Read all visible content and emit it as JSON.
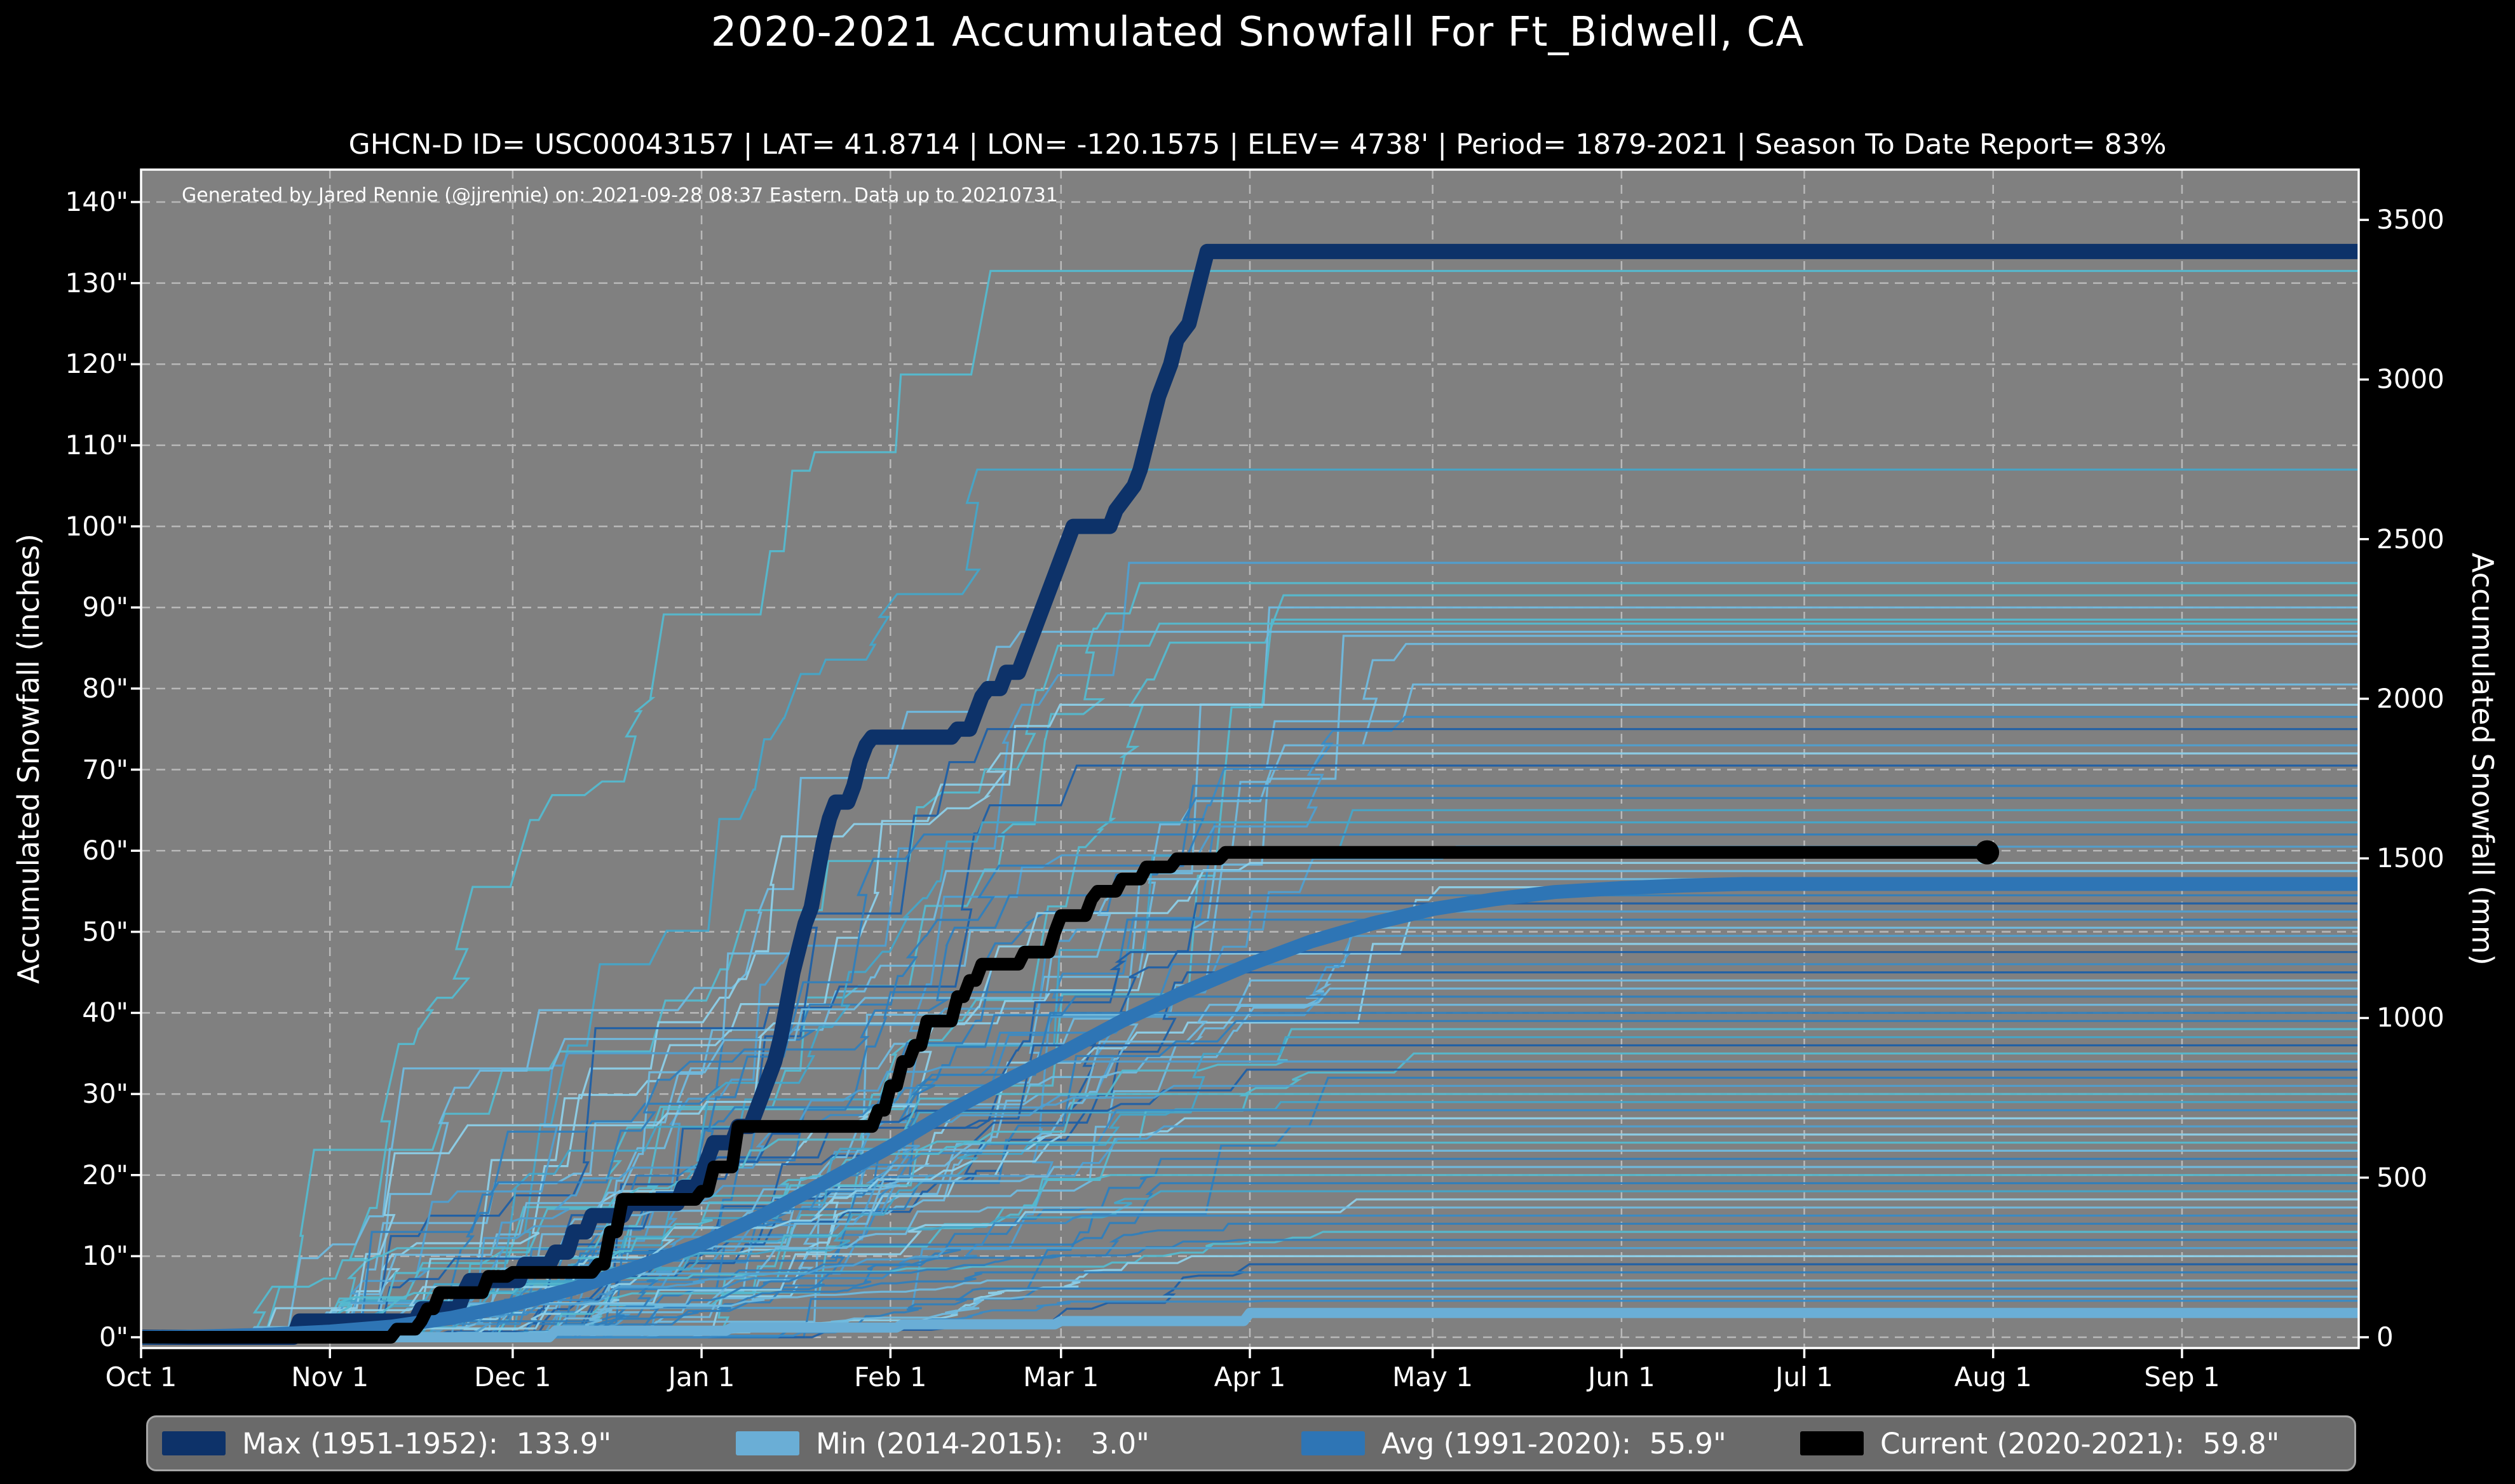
{
  "figure": {
    "title": "2020-2021 Accumulated Snowfall For Ft_Bidwell, CA",
    "subtitle": "GHCN-D ID= USC00043157 | LAT= 41.8714 | LON= -120.1575 | ELEV= 4738' | Period= 1879-2021 | Season To Date Report= 83%",
    "annotation": "Generated by Jared Rennie (@jjrennie) on: 2021-09-28 08:37 Eastern. Data up to 20210731",
    "colors": {
      "background": "#000000",
      "plot_background": "#808080",
      "grid": "#e8e8e8",
      "axis_line": "#ffffff",
      "text": "#ffffff",
      "legend_background": "#6a6a6a",
      "legend_border": "#a6a6a6"
    }
  },
  "axes": {
    "left": {
      "label": "Accumulated Snowfall (inches)",
      "tick_labels": [
        "0\"",
        "10\"",
        "20\"",
        "30\"",
        "40\"",
        "50\"",
        "60\"",
        "70\"",
        "80\"",
        "90\"",
        "100\"",
        "110\"",
        "120\"",
        "130\"",
        "140\""
      ],
      "tick_values": [
        0,
        10,
        20,
        30,
        40,
        50,
        60,
        70,
        80,
        90,
        100,
        110,
        120,
        130,
        140
      ]
    },
    "right": {
      "label": "Accumulated Snowfall (mm)",
      "tick_labels": [
        "0",
        "500",
        "1000",
        "1500",
        "2000",
        "2500",
        "3000",
        "3500"
      ],
      "tick_values": [
        0,
        500,
        1000,
        1500,
        2000,
        2500,
        3000,
        3500
      ]
    },
    "bottom": {
      "tick_labels": [
        "Oct 1",
        "Nov 1",
        "Dec 1",
        "Jan 1",
        "Feb 1",
        "Mar 1",
        "Apr 1",
        "May 1",
        "Jun 1",
        "Jul 1",
        "Aug 1",
        "Sep 1"
      ],
      "tick_days": [
        0,
        31,
        61,
        92,
        123,
        151,
        182,
        212,
        243,
        273,
        304,
        335
      ]
    }
  },
  "legend": {
    "items": [
      {
        "text": "Max (1951-1952):  133.9\"",
        "color": "#0d3269"
      },
      {
        "text": "Min (2014-2015):   3.0\"",
        "color": "#6aaed6"
      },
      {
        "text": "Avg (1991-2020):  55.9\"",
        "color": "#2e75b5"
      },
      {
        "text": "Current (2020-2021):  59.8\"",
        "color": "#000000"
      }
    ]
  },
  "chart_data": {
    "type": "line",
    "x_unit": "days since Oct 1",
    "x_range": [
      0,
      364
    ],
    "y_left_range_inches": [
      0,
      140
    ],
    "y_right_range_mm": [
      0,
      3556
    ],
    "grid": true,
    "series": [
      {
        "name": "Max (1951-1952)",
        "final_value_inches": 133.9,
        "color": "#0d3269",
        "width": 24,
        "points": [
          [
            0,
            0
          ],
          [
            25,
            0
          ],
          [
            26,
            2
          ],
          [
            45,
            2
          ],
          [
            46,
            3.5
          ],
          [
            52,
            3.5
          ],
          [
            53,
            5.5
          ],
          [
            54,
            7
          ],
          [
            62,
            7
          ],
          [
            63,
            9
          ],
          [
            67,
            9
          ],
          [
            68,
            10.5
          ],
          [
            70,
            10.5
          ],
          [
            71,
            13
          ],
          [
            73,
            13
          ],
          [
            74,
            15
          ],
          [
            79,
            15
          ],
          [
            80,
            16.5
          ],
          [
            88,
            16.5
          ],
          [
            89,
            18.5
          ],
          [
            91,
            18.5
          ],
          [
            92,
            20
          ],
          [
            93,
            22
          ],
          [
            94,
            24
          ],
          [
            97,
            24
          ],
          [
            98,
            26
          ],
          [
            100,
            26
          ],
          [
            101,
            28
          ],
          [
            102,
            30
          ],
          [
            103,
            32
          ],
          [
            104,
            34
          ],
          [
            105,
            37
          ],
          [
            106,
            41
          ],
          [
            107,
            45
          ],
          [
            108,
            48
          ],
          [
            109,
            51
          ],
          [
            110,
            53
          ],
          [
            111,
            57
          ],
          [
            112,
            61
          ],
          [
            113,
            64
          ],
          [
            114,
            66
          ],
          [
            116,
            66
          ],
          [
            117,
            68
          ],
          [
            118,
            71
          ],
          [
            119,
            73
          ],
          [
            120,
            74
          ],
          [
            133,
            74
          ],
          [
            134,
            75
          ],
          [
            136,
            75
          ],
          [
            137,
            77
          ],
          [
            138,
            79
          ],
          [
            139,
            80
          ],
          [
            141,
            80
          ],
          [
            142,
            82
          ],
          [
            144,
            82
          ],
          [
            145,
            84
          ],
          [
            146,
            86
          ],
          [
            147,
            88
          ],
          [
            148,
            90
          ],
          [
            149,
            92
          ],
          [
            150,
            94
          ],
          [
            151,
            96
          ],
          [
            152,
            98
          ],
          [
            153,
            100
          ],
          [
            159,
            100
          ],
          [
            160,
            102
          ],
          [
            161,
            103
          ],
          [
            163,
            105
          ],
          [
            164,
            107
          ],
          [
            165,
            110
          ],
          [
            166,
            113
          ],
          [
            167,
            116
          ],
          [
            168,
            118
          ],
          [
            169,
            120
          ],
          [
            170,
            123
          ],
          [
            171,
            124
          ],
          [
            172,
            125
          ],
          [
            173,
            128
          ],
          [
            174,
            131
          ],
          [
            175,
            133.9
          ],
          [
            364,
            133.9
          ]
        ]
      },
      {
        "name": "Min (2014-2015)",
        "final_value_inches": 3.0,
        "color": "#6aaed6",
        "width": 16,
        "points": [
          [
            0,
            0
          ],
          [
            67,
            0
          ],
          [
            68,
            0.8
          ],
          [
            96,
            0.8
          ],
          [
            97,
            1.2
          ],
          [
            124,
            1.2
          ],
          [
            125,
            1.6
          ],
          [
            150,
            1.6
          ],
          [
            151,
            2
          ],
          [
            181,
            2
          ],
          [
            182,
            3
          ],
          [
            364,
            3
          ]
        ]
      },
      {
        "name": "Avg (1991-2020)",
        "final_value_inches": 55.9,
        "color": "#2e75b5",
        "width": 22,
        "points": [
          [
            0,
            0
          ],
          [
            10,
            0.1
          ],
          [
            20,
            0.3
          ],
          [
            31,
            0.7
          ],
          [
            41,
            1.3
          ],
          [
            51,
            2.4
          ],
          [
            61,
            4
          ],
          [
            71,
            6
          ],
          [
            81,
            8.5
          ],
          [
            92,
            11.5
          ],
          [
            102,
            15
          ],
          [
            112,
            19
          ],
          [
            123,
            23.5
          ],
          [
            133,
            28
          ],
          [
            143,
            32
          ],
          [
            151,
            35
          ],
          [
            161,
            39
          ],
          [
            171,
            42.5
          ],
          [
            182,
            46
          ],
          [
            192,
            48.8
          ],
          [
            202,
            51
          ],
          [
            212,
            52.8
          ],
          [
            222,
            54
          ],
          [
            232,
            54.9
          ],
          [
            243,
            55.4
          ],
          [
            253,
            55.7
          ],
          [
            263,
            55.9
          ],
          [
            364,
            55.9
          ]
        ]
      },
      {
        "name": "Current (2020-2021)",
        "final_value_inches": 59.8,
        "color": "#000000",
        "width": 20,
        "end_marker": {
          "day": 303,
          "value": 59.8,
          "radius": 19
        },
        "points": [
          [
            0,
            0
          ],
          [
            41,
            0
          ],
          [
            42,
            1
          ],
          [
            45,
            1
          ],
          [
            46,
            2
          ],
          [
            47,
            3.5
          ],
          [
            48,
            3.5
          ],
          [
            49,
            5.5
          ],
          [
            56,
            5.5
          ],
          [
            57,
            7.5
          ],
          [
            60,
            7.5
          ],
          [
            61,
            8
          ],
          [
            74,
            8
          ],
          [
            75,
            9
          ],
          [
            76,
            9
          ],
          [
            77,
            13
          ],
          [
            78,
            13
          ],
          [
            79,
            17
          ],
          [
            91,
            17
          ],
          [
            92,
            18
          ],
          [
            93,
            18
          ],
          [
            94,
            21
          ],
          [
            97,
            21
          ],
          [
            98,
            26
          ],
          [
            120,
            26
          ],
          [
            121,
            28
          ],
          [
            122,
            28
          ],
          [
            123,
            31
          ],
          [
            124,
            31
          ],
          [
            125,
            34
          ],
          [
            126,
            34
          ],
          [
            127,
            36
          ],
          [
            128,
            36
          ],
          [
            129,
            39
          ],
          [
            133,
            39
          ],
          [
            134,
            42
          ],
          [
            135,
            42
          ],
          [
            136,
            44
          ],
          [
            137,
            44
          ],
          [
            138,
            46
          ],
          [
            144,
            46
          ],
          [
            145,
            47.5
          ],
          [
            149,
            47.5
          ],
          [
            150,
            50
          ],
          [
            151,
            52
          ],
          [
            155,
            52
          ],
          [
            156,
            54
          ],
          [
            157,
            55
          ],
          [
            160,
            55
          ],
          [
            161,
            56.5
          ],
          [
            164,
            56.5
          ],
          [
            165,
            58
          ],
          [
            169,
            58
          ],
          [
            170,
            59
          ],
          [
            177,
            59
          ],
          [
            178,
            59.8
          ],
          [
            303,
            59.8
          ]
        ]
      }
    ],
    "background_years": {
      "description": "Thin historical season traces (1879-2020), approximate season totals read at right edge",
      "seed": 7,
      "line_width": 3.2,
      "palette": [
        "#2f7ebc",
        "#3a8ac4",
        "#4f9fd0",
        "#6fb9de",
        "#8ccfe8",
        "#1d5fa5",
        "#54b9cf",
        "#45a5c8"
      ],
      "final_totals_inches": [
        131.5,
        107,
        95.5,
        93,
        91.5,
        90,
        88.5,
        88,
        87,
        86.5,
        85.5,
        80.5,
        78,
        76.5,
        75,
        73,
        72,
        70.5,
        68,
        66.5,
        65,
        63.5,
        62,
        60.5,
        58.5,
        57.5,
        56.5,
        55.5,
        54.5,
        53.5,
        52.5,
        51.5,
        50.5,
        49.5,
        48.5,
        47.5,
        46,
        45,
        44,
        43,
        42,
        41,
        40,
        39,
        38,
        37,
        36,
        35,
        34,
        33,
        32,
        31,
        30,
        29,
        28,
        27,
        26,
        25,
        24,
        23,
        22,
        21,
        20,
        19,
        18,
        17,
        16,
        15,
        14,
        13,
        12,
        11,
        10,
        9,
        8,
        7,
        6,
        5,
        4.5
      ]
    }
  }
}
